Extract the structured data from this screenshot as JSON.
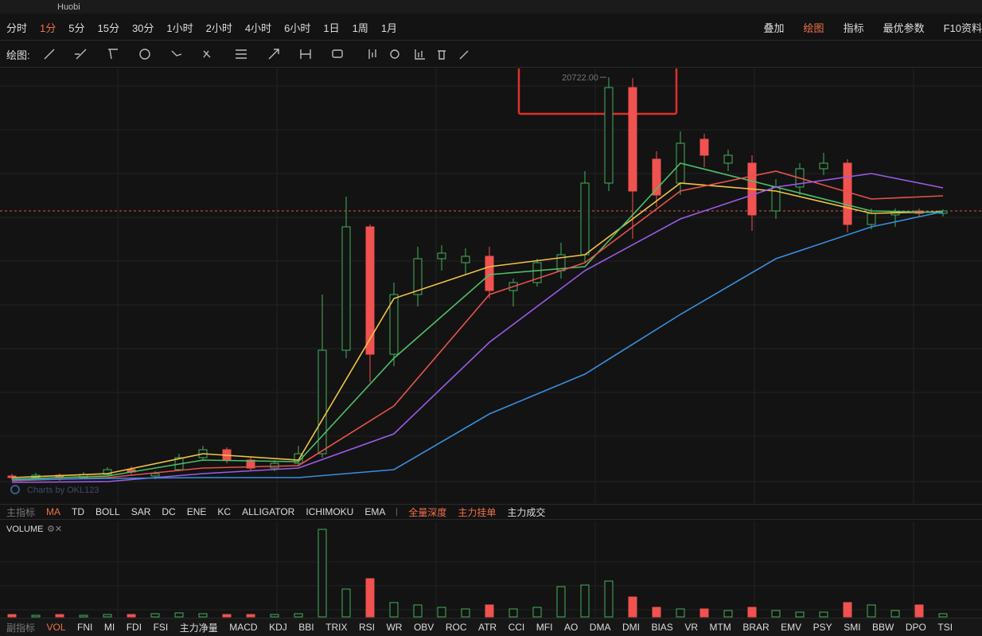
{
  "header": {
    "exchange": "Huobi",
    "timeframes": [
      "分时",
      "1分",
      "5分",
      "15分",
      "30分",
      "1小时",
      "2小时",
      "4小时",
      "6小时",
      "1日",
      "1周",
      "1月"
    ],
    "active_timeframe": 1,
    "tools": [
      "叠加",
      "绘图",
      "指标",
      "最优参数",
      "F10资料"
    ],
    "active_tool": 1,
    "draw_label": "绘图:"
  },
  "indicators": {
    "main_label": "主指标",
    "main": [
      "MA",
      "TD",
      "BOLL",
      "SAR",
      "DC",
      "ENE",
      "KC",
      "ALLIGATOR",
      "ICHIMOKU",
      "EMA"
    ],
    "active_main": 0,
    "depth": [
      "全量深度",
      "主力挂单",
      "主力成交"
    ],
    "sub_label": "副指标",
    "sub": [
      "VOL",
      "FNI",
      "MI",
      "FDI",
      "FSI",
      "主力净量",
      "MACD",
      "KDJ",
      "BBI",
      "TRIX",
      "RSI",
      "WR",
      "OBV",
      "ROC",
      "ATR",
      "CCI",
      "MFI",
      "AO",
      "DMA",
      "DMI",
      "BIAS",
      "VR",
      "MTM",
      "BRAR",
      "EMV",
      "PSY",
      "SMI",
      "BBW",
      "DPO",
      "TSI"
    ],
    "active_sub": 0
  },
  "chart_data": {
    "type": "candlestick",
    "watermark": "Charts by OKL123",
    "ylim": [
      2000,
      21040
    ],
    "up_color": "#45b05c",
    "down_color": "#f0524f",
    "open": [
      3190,
      3120,
      3225,
      3120,
      3260,
      3470,
      3190,
      3470,
      3995,
      4345,
      3890,
      3540,
      3750,
      4170,
      8720,
      14145,
      8545,
      11170,
      12745,
      12570,
      12850,
      11345,
      11695,
      12220,
      12920,
      16070,
      20270,
      17120,
      16070,
      17995,
      16945,
      16945,
      14845,
      15895,
      16700,
      16945,
      14250,
      14670,
      14845,
      14740
    ],
    "high": [
      3295,
      3330,
      3295,
      3365,
      3575,
      3610,
      3400,
      4170,
      4520,
      4450,
      4030,
      3890,
      4520,
      11170,
      15475,
      14250,
      11695,
      13270,
      13340,
      13200,
      13270,
      11870,
      12745,
      13445,
      16595,
      20722,
      20690,
      17470,
      18345,
      18240,
      17540,
      17295,
      16245,
      16945,
      17400,
      17120,
      14950,
      14950,
      14950,
      14915
    ],
    "low": [
      3015,
      3050,
      2980,
      3050,
      3190,
      3260,
      3050,
      3400,
      3890,
      3750,
      3400,
      3400,
      3610,
      3995,
      8370,
      7320,
      8020,
      10645,
      12220,
      12045,
      10995,
      10645,
      11520,
      11870,
      12570,
      15720,
      13620,
      15020,
      15545,
      16770,
      16595,
      13970,
      14495,
      15545,
      16420,
      13900,
      14040,
      14145,
      14600,
      14600
    ],
    "close": [
      3120,
      3225,
      3120,
      3260,
      3470,
      3365,
      3295,
      3995,
      4345,
      3890,
      3540,
      3750,
      4170,
      8720,
      14145,
      8545,
      11170,
      12745,
      12990,
      12850,
      11345,
      11695,
      12570,
      12920,
      16070,
      20270,
      15720,
      15545,
      17820,
      17295,
      17295,
      14670,
      15895,
      16700,
      16945,
      14250,
      14740,
      14810,
      14740,
      14845
    ],
    "max_label": {
      "value": 20722,
      "label": "20722.00"
    },
    "last_price": 14845,
    "last_price_color": "#e0564a",
    "ma_index": [
      0,
      4,
      8,
      12,
      16,
      20,
      24,
      28,
      32,
      36,
      39
    ],
    "ma_series": [
      {
        "color": "#f2c444",
        "values": [
          3120,
          3295,
          4170,
          3890,
          10995,
          12395,
          12920,
          16070,
          15720,
          14740,
          14810
        ]
      },
      {
        "color": "#4cc06a",
        "values": [
          3050,
          3190,
          3890,
          3820,
          8370,
          12045,
          12395,
          16945,
          15895,
          14845,
          14775
        ]
      },
      {
        "color": "#e5534b",
        "values": [
          2980,
          3120,
          3540,
          3645,
          6270,
          11170,
          12570,
          15720,
          16595,
          15370,
          15510
        ]
      },
      {
        "color": "#9a5be6",
        "values": [
          2910,
          2945,
          3295,
          3540,
          5045,
          9070,
          12220,
          14495,
          15895,
          16490,
          15860
        ]
      },
      {
        "color": "#3b8de0",
        "values": [
          3015,
          3085,
          3120,
          3120,
          3470,
          5920,
          7670,
          10295,
          12745,
          14145,
          14810
        ]
      }
    ],
    "volume_title": "VOLUME",
    "volume_ylim": [
      0,
      110
    ],
    "volume": [
      3,
      2,
      3,
      2,
      3,
      3,
      4,
      5,
      4,
      3,
      3,
      3,
      4,
      110,
      35,
      48,
      18,
      15,
      12,
      10,
      15,
      10,
      12,
      38,
      40,
      45,
      25,
      12,
      10,
      10,
      8,
      12,
      8,
      6,
      6,
      18,
      15,
      8,
      15,
      4
    ]
  }
}
